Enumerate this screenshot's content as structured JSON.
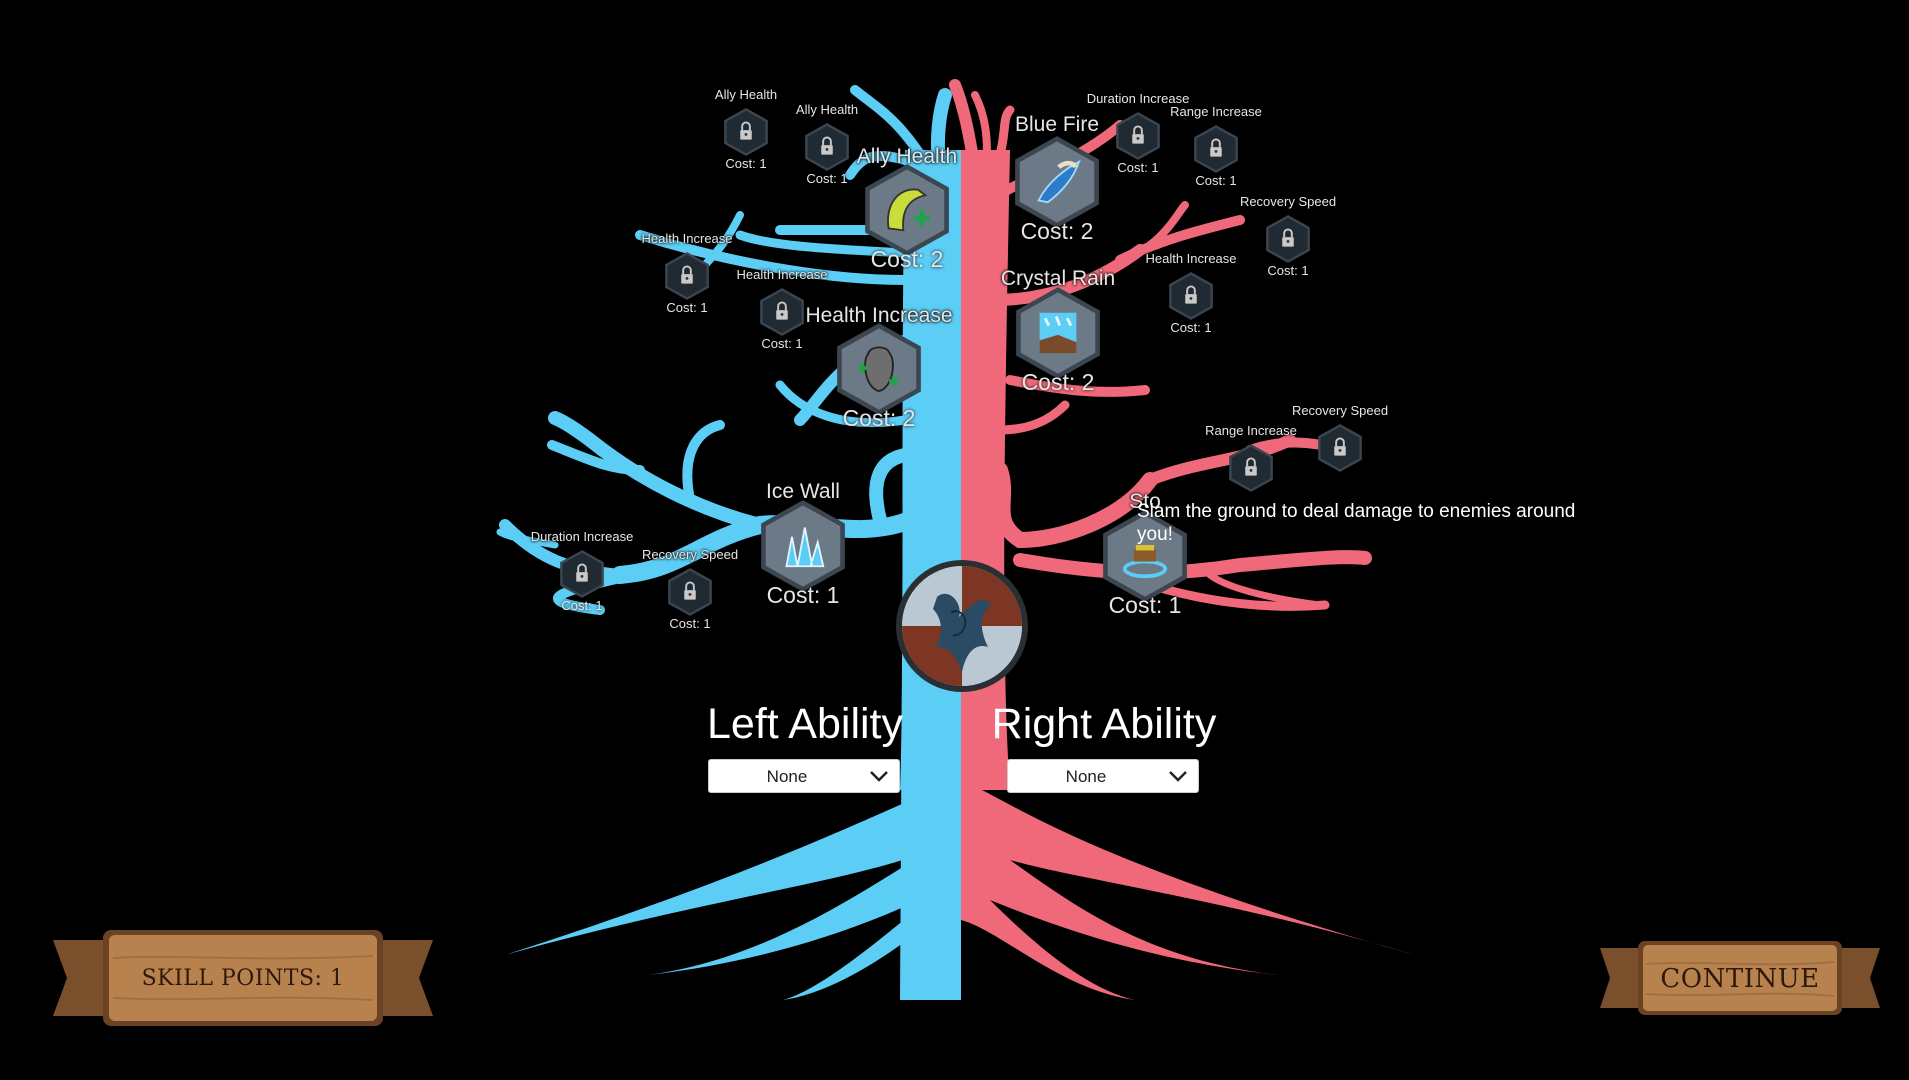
{
  "colors": {
    "left_branch": "#5ccdf5",
    "right_branch": "#f0697a",
    "node_fill": "#6b7a86",
    "locked_fill": "#1f2a33",
    "wood": "#b8824f"
  },
  "left_ability": {
    "title": "Left Ability",
    "selected": "None"
  },
  "right_ability": {
    "title": "Right Ability",
    "selected": "None"
  },
  "tooltip": "Slam the ground to deal damage to enemies around you!",
  "skill_points_label": "SKILL POINTS:  1",
  "continue_label": "CONTINUE",
  "nodes": [
    {
      "label": "Ally Health",
      "cost": "Cost: 1",
      "locked": true,
      "icon": "lock-icon"
    },
    {
      "label": "Ally Health",
      "cost": "Cost: 1",
      "locked": true,
      "icon": "lock-icon"
    },
    {
      "label": "Ally Health",
      "cost": "Cost: 2",
      "locked": false,
      "icon": "ally-health-icon"
    },
    {
      "label": "Health Increase",
      "cost": "Cost: 1",
      "locked": true,
      "icon": "lock-icon"
    },
    {
      "label": "Health Increase",
      "cost": "Cost: 1",
      "locked": true,
      "icon": "lock-icon"
    },
    {
      "label": "Health Increase",
      "cost": "Cost: 2",
      "locked": false,
      "icon": "health-increase-icon"
    },
    {
      "label": "Ice Wall",
      "cost": "Cost: 1",
      "locked": false,
      "icon": "ice-wall-icon"
    },
    {
      "label": "Duration Increase",
      "cost": "Cost: 1",
      "locked": true,
      "icon": "lock-icon"
    },
    {
      "label": "Recovery Speed",
      "cost": "Cost: 1",
      "locked": true,
      "icon": "lock-icon"
    },
    {
      "label": "Blue Fire",
      "cost": "Cost: 2",
      "locked": false,
      "icon": "blue-fire-icon"
    },
    {
      "label": "Duration Increase",
      "cost": "Cost: 1",
      "locked": true,
      "icon": "lock-icon"
    },
    {
      "label": "Range Increase",
      "cost": "Cost: 1",
      "locked": true,
      "icon": "lock-icon"
    },
    {
      "label": "Recovery Speed",
      "cost": "Cost: 1",
      "locked": true,
      "icon": "lock-icon"
    },
    {
      "label": "Health Increase",
      "cost": "Cost: 1",
      "locked": true,
      "icon": "lock-icon"
    },
    {
      "label": "Crystal Rain",
      "cost": "Cost: 2",
      "locked": false,
      "icon": "crystal-rain-icon"
    },
    {
      "label": "Range Increase",
      "cost": "",
      "locked": true,
      "icon": "lock-icon"
    },
    {
      "label": "Recovery Speed",
      "cost": "",
      "locked": true,
      "icon": "lock-icon"
    },
    {
      "label": "Sto",
      "cost": "Cost: 1",
      "locked": false,
      "icon": "stomp-icon"
    }
  ]
}
